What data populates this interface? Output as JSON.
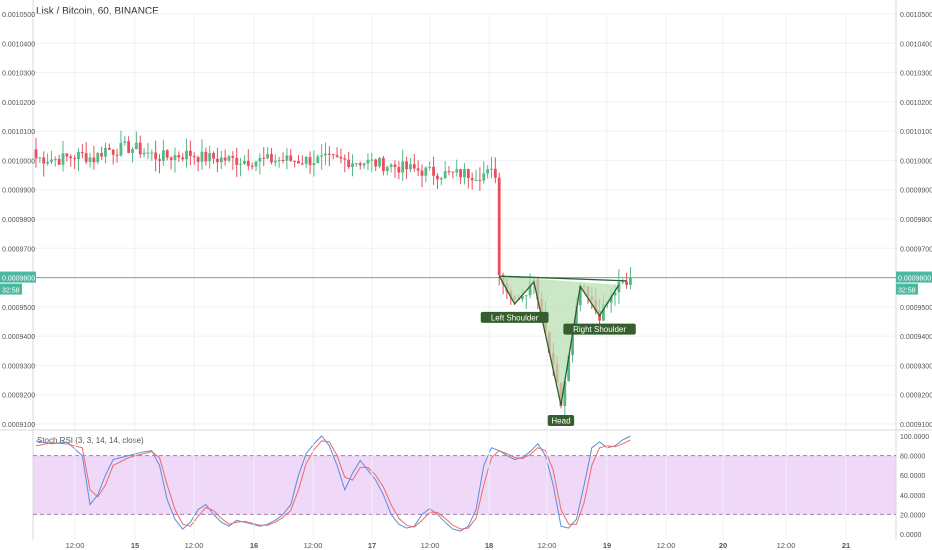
{
  "header": {
    "title": "Lisk / Bitcoin, 60, BINANCE"
  },
  "price_tag": {
    "price": "0.0009600",
    "countdown": "32:58"
  },
  "colors": {
    "up": "#53b987",
    "down": "#eb4d5c",
    "grid": "#eef1f4",
    "price_line": "#4bb8a0",
    "pattern_fill": "#b9dfb3",
    "pattern_stroke": "#2e5e2e",
    "label_bg": "#365f2e",
    "rsi_band": "#e9c8f7",
    "stoch_k": "#5b8dd9",
    "stoch_d": "#ef6a6a"
  },
  "chart_data": [
    {
      "type": "candlestick",
      "title": "Lisk / Bitcoin, 60, BINANCE",
      "ylim": [
        0.00091,
        0.00105
      ],
      "y_ticks": [
        "0.0010500",
        "0.0010400",
        "0.0010300",
        "0.0010200",
        "0.0010100",
        "0.0010000",
        "0.0009900",
        "0.0009800",
        "0.0009700",
        "0.0009600",
        "0.0009500",
        "0.0009400",
        "0.0009300",
        "0.0009200",
        "0.0009100"
      ],
      "x_ticks": [
        "12:00",
        "15",
        "12:00",
        "16",
        "12:00",
        "17",
        "12:00",
        "18",
        "12:00",
        "19",
        "12:00",
        "20",
        "12:00",
        "21"
      ],
      "current_price": 0.00096,
      "close_anchors": [
        [
          0,
          1.0008
        ],
        [
          3,
          1.0006
        ],
        [
          6,
          1.0004
        ],
        [
          9,
          1.0012
        ],
        [
          12,
          1.0018
        ],
        [
          15,
          1.0006
        ],
        [
          18,
          1.004
        ],
        [
          20,
          1.0034
        ],
        [
          23,
          1.0044
        ],
        [
          26,
          1.004
        ],
        [
          28,
          1.003
        ],
        [
          31,
          1.0014
        ],
        [
          34,
          1.0012
        ],
        [
          37,
          1.0018
        ],
        [
          40,
          1.0022
        ],
        [
          43,
          1.001
        ],
        [
          46,
          1.0007
        ],
        [
          49,
          1.0004
        ],
        [
          52,
          1.0001
        ],
        [
          56,
          1.0
        ],
        [
          60,
          1.0001
        ],
        [
          64,
          1.0002
        ],
        [
          68,
          1.0
        ],
        [
          72,
          1.0001
        ],
        [
          76,
          1.0002
        ],
        [
          80,
          1.0
        ],
        [
          84,
          0.9996
        ],
        [
          87,
          0.9992
        ],
        [
          90,
          0.9986
        ],
        [
          93,
          0.998
        ],
        [
          96,
          0.9972
        ],
        [
          99,
          0.9967
        ],
        [
          102,
          0.996
        ],
        [
          105,
          0.9955
        ],
        [
          108,
          0.9952
        ],
        [
          111,
          0.9956
        ],
        [
          114,
          0.9952
        ],
        [
          117,
          0.9955
        ],
        [
          120,
          0.9958
        ],
        [
          123,
          0.9956
        ],
        [
          126,
          0.9954
        ],
        [
          129,
          0.9958
        ],
        [
          132,
          0.9936
        ],
        [
          134,
          0.9925
        ],
        [
          136,
          0.9925
        ],
        [
          139,
          0.994
        ],
        [
          142,
          0.9952
        ],
        [
          145,
          0.9948
        ],
        [
          148,
          0.995
        ],
        [
          151,
          0.9954
        ],
        [
          154,
          0.9958
        ]
      ],
      "pattern": {
        "name": "Inverse Head and Shoulders",
        "vertices": [
          [
            120,
            0.0009605
          ],
          [
            124,
            0.000951
          ],
          [
            129,
            0.0009585
          ],
          [
            136,
            0.0009165
          ],
          [
            141,
            0.000957
          ],
          [
            146,
            0.000947
          ],
          [
            151,
            0.0009575
          ]
        ],
        "labels": [
          "Left Shoulder",
          "Head",
          "Right Shoulder"
        ]
      }
    },
    {
      "type": "line",
      "title": "Stoch RSI (3, 3, 14, 14, close)",
      "ylim": [
        0,
        100
      ],
      "y_ticks": [
        "100.0000",
        "80.0000",
        "60.0000",
        "40.0000",
        "20.0000",
        "0.0000"
      ],
      "band": [
        20,
        80
      ],
      "series": [
        {
          "name": "K",
          "anchors": [
            [
              0,
              95
            ],
            [
              4,
              92
            ],
            [
              8,
              94
            ],
            [
              12,
              80
            ],
            [
              14,
              30
            ],
            [
              16,
              40
            ],
            [
              18,
              60
            ],
            [
              20,
              76
            ],
            [
              24,
              80
            ],
            [
              28,
              84
            ],
            [
              30,
              85
            ],
            [
              32,
              70
            ],
            [
              34,
              35
            ],
            [
              36,
              15
            ],
            [
              38,
              5
            ],
            [
              40,
              12
            ],
            [
              42,
              25
            ],
            [
              44,
              30
            ],
            [
              46,
              20
            ],
            [
              48,
              12
            ],
            [
              50,
              8
            ],
            [
              52,
              14
            ],
            [
              54,
              12
            ],
            [
              56,
              10
            ],
            [
              58,
              8
            ],
            [
              60,
              10
            ],
            [
              62,
              14
            ],
            [
              64,
              20
            ],
            [
              66,
              30
            ],
            [
              68,
              60
            ],
            [
              70,
              82
            ],
            [
              72,
              92
            ],
            [
              74,
              100
            ],
            [
              76,
              90
            ],
            [
              78,
              70
            ],
            [
              80,
              45
            ],
            [
              82,
              62
            ],
            [
              84,
              75
            ],
            [
              86,
              65
            ],
            [
              88,
              55
            ],
            [
              90,
              40
            ],
            [
              92,
              20
            ],
            [
              94,
              10
            ],
            [
              96,
              6
            ],
            [
              98,
              8
            ],
            [
              100,
              20
            ],
            [
              102,
              26
            ],
            [
              104,
              20
            ],
            [
              106,
              12
            ],
            [
              108,
              5
            ],
            [
              110,
              3
            ],
            [
              112,
              8
            ],
            [
              114,
              25
            ],
            [
              116,
              70
            ],
            [
              118,
              88
            ],
            [
              120,
              85
            ],
            [
              122,
              80
            ],
            [
              124,
              76
            ],
            [
              126,
              78
            ],
            [
              128,
              84
            ],
            [
              130,
              92
            ],
            [
              132,
              80
            ],
            [
              134,
              50
            ],
            [
              136,
              8
            ],
            [
              138,
              6
            ],
            [
              140,
              15
            ],
            [
              142,
              50
            ],
            [
              144,
              88
            ],
            [
              146,
              94
            ],
            [
              148,
              88
            ],
            [
              150,
              90
            ],
            [
              152,
              96
            ],
            [
              154,
              100
            ]
          ]
        },
        {
          "name": "D",
          "anchors": [
            [
              0,
              90
            ],
            [
              4,
              93
            ],
            [
              8,
              92
            ],
            [
              12,
              88
            ],
            [
              14,
              45
            ],
            [
              16,
              38
            ],
            [
              18,
              50
            ],
            [
              20,
              70
            ],
            [
              24,
              78
            ],
            [
              28,
              82
            ],
            [
              30,
              84
            ],
            [
              32,
              78
            ],
            [
              34,
              50
            ],
            [
              36,
              25
            ],
            [
              38,
              10
            ],
            [
              40,
              8
            ],
            [
              42,
              18
            ],
            [
              44,
              27
            ],
            [
              46,
              24
            ],
            [
              48,
              16
            ],
            [
              50,
              10
            ],
            [
              52,
              12
            ],
            [
              54,
              13
            ],
            [
              56,
              11
            ],
            [
              58,
              9
            ],
            [
              60,
              9
            ],
            [
              62,
              12
            ],
            [
              64,
              17
            ],
            [
              66,
              24
            ],
            [
              68,
              45
            ],
            [
              70,
              72
            ],
            [
              72,
              86
            ],
            [
              74,
              95
            ],
            [
              76,
              94
            ],
            [
              78,
              80
            ],
            [
              80,
              58
            ],
            [
              82,
              55
            ],
            [
              84,
              68
            ],
            [
              86,
              68
            ],
            [
              88,
              60
            ],
            [
              90,
              48
            ],
            [
              92,
              30
            ],
            [
              94,
              16
            ],
            [
              96,
              9
            ],
            [
              98,
              7
            ],
            [
              100,
              14
            ],
            [
              102,
              22
            ],
            [
              104,
              22
            ],
            [
              106,
              16
            ],
            [
              108,
              9
            ],
            [
              110,
              5
            ],
            [
              112,
              6
            ],
            [
              114,
              16
            ],
            [
              116,
              50
            ],
            [
              118,
              78
            ],
            [
              120,
              85
            ],
            [
              122,
              82
            ],
            [
              124,
              78
            ],
            [
              126,
              77
            ],
            [
              128,
              81
            ],
            [
              130,
              88
            ],
            [
              132,
              85
            ],
            [
              134,
              65
            ],
            [
              136,
              25
            ],
            [
              138,
              10
            ],
            [
              140,
              10
            ],
            [
              142,
              32
            ],
            [
              144,
              70
            ],
            [
              146,
              88
            ],
            [
              148,
              90
            ],
            [
              150,
              89
            ],
            [
              152,
              92
            ],
            [
              154,
              96
            ]
          ]
        }
      ]
    }
  ]
}
